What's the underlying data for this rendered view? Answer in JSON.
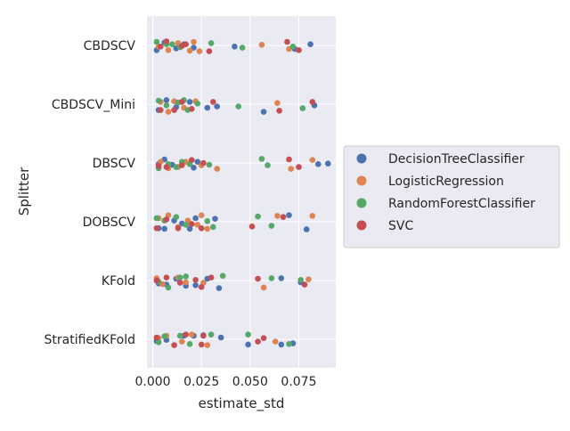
{
  "chart_data": {
    "type": "scatter",
    "subtype": "strip",
    "xlabel": "estimate_std",
    "ylabel": "Splitter",
    "xlim": [
      -0.003,
      0.094
    ],
    "xticks": [
      0.0,
      0.025,
      0.05,
      0.075
    ],
    "xtick_labels": [
      "0.000",
      "0.025",
      "0.050",
      "0.075"
    ],
    "categories": [
      "CBDSCV",
      "CBDSCV_Mini",
      "DBSCV",
      "DOBSCV",
      "KFold",
      "StratifiedKFold"
    ],
    "grid": true,
    "legend_position": "right",
    "series": [
      {
        "name": "DecisionTreeClassifier",
        "color": "#4c72b0",
        "points": [
          {
            "cat": "CBDSCV",
            "x": 0.002,
            "j": 0.08
          },
          {
            "cat": "CBDSCV",
            "x": 0.006,
            "j": -0.05
          },
          {
            "cat": "CBDSCV",
            "x": 0.012,
            "j": 0.05
          },
          {
            "cat": "CBDSCV",
            "x": 0.016,
            "j": -0.02
          },
          {
            "cat": "CBDSCV",
            "x": 0.021,
            "j": 0.04
          },
          {
            "cat": "CBDSCV",
            "x": 0.042,
            "j": 0.02
          },
          {
            "cat": "CBDSCV",
            "x": 0.073,
            "j": 0.06
          },
          {
            "cat": "CBDSCV",
            "x": 0.081,
            "j": -0.02
          },
          {
            "cat": "CBDSCV_Mini",
            "x": 0.003,
            "j": 0.1
          },
          {
            "cat": "CBDSCV_Mini",
            "x": 0.007,
            "j": -0.07
          },
          {
            "cat": "CBDSCV_Mini",
            "x": 0.012,
            "j": 0.05
          },
          {
            "cat": "CBDSCV_Mini",
            "x": 0.019,
            "j": -0.04
          },
          {
            "cat": "CBDSCV_Mini",
            "x": 0.028,
            "j": 0.06
          },
          {
            "cat": "CBDSCV_Mini",
            "x": 0.033,
            "j": 0.04
          },
          {
            "cat": "CBDSCV_Mini",
            "x": 0.057,
            "j": 0.13
          },
          {
            "cat": "CBDSCV_Mini",
            "x": 0.083,
            "j": 0.02
          },
          {
            "cat": "DBSCV",
            "x": 0.003,
            "j": 0.02
          },
          {
            "cat": "DBSCV",
            "x": 0.006,
            "j": -0.06
          },
          {
            "cat": "DBSCV",
            "x": 0.01,
            "j": 0.03
          },
          {
            "cat": "DBSCV",
            "x": 0.015,
            "j": -0.01
          },
          {
            "cat": "DBSCV",
            "x": 0.021,
            "j": 0.08
          },
          {
            "cat": "DBSCV",
            "x": 0.023,
            "j": -0.02
          },
          {
            "cat": "DBSCV",
            "x": 0.085,
            "j": 0.02
          },
          {
            "cat": "DBSCV",
            "x": 0.09,
            "j": 0.01
          },
          {
            "cat": "DOBSCV",
            "x": 0.003,
            "j": 0.11
          },
          {
            "cat": "DOBSCV",
            "x": 0.006,
            "j": 0.12
          },
          {
            "cat": "DOBSCV",
            "x": 0.011,
            "j": -0.02
          },
          {
            "cat": "DOBSCV",
            "x": 0.015,
            "j": 0.03
          },
          {
            "cat": "DOBSCV",
            "x": 0.019,
            "j": 0.12
          },
          {
            "cat": "DOBSCV",
            "x": 0.022,
            "j": -0.06
          },
          {
            "cat": "DOBSCV",
            "x": 0.032,
            "j": -0.05
          },
          {
            "cat": "DOBSCV",
            "x": 0.07,
            "j": -0.11
          },
          {
            "cat": "DOBSCV",
            "x": 0.079,
            "j": 0.13
          },
          {
            "cat": "KFold",
            "x": 0.003,
            "j": 0.05
          },
          {
            "cat": "KFold",
            "x": 0.007,
            "j": 0.07
          },
          {
            "cat": "KFold",
            "x": 0.012,
            "j": -0.03
          },
          {
            "cat": "KFold",
            "x": 0.017,
            "j": 0.09
          },
          {
            "cat": "KFold",
            "x": 0.022,
            "j": 0.08
          },
          {
            "cat": "KFold",
            "x": 0.028,
            "j": -0.03
          },
          {
            "cat": "KFold",
            "x": 0.034,
            "j": 0.13
          },
          {
            "cat": "KFold",
            "x": 0.066,
            "j": -0.04
          },
          {
            "cat": "KFold",
            "x": 0.076,
            "j": 0.03
          },
          {
            "cat": "StratifiedKFold",
            "x": 0.002,
            "j": 0.03
          },
          {
            "cat": "StratifiedKFold",
            "x": 0.007,
            "j": 0.01
          },
          {
            "cat": "StratifiedKFold",
            "x": 0.016,
            "j": -0.06
          },
          {
            "cat": "StratifiedKFold",
            "x": 0.021,
            "j": -0.06
          },
          {
            "cat": "StratifiedKFold",
            "x": 0.026,
            "j": -0.07
          },
          {
            "cat": "StratifiedKFold",
            "x": 0.035,
            "j": -0.03
          },
          {
            "cat": "StratifiedKFold",
            "x": 0.049,
            "j": 0.09
          },
          {
            "cat": "StratifiedKFold",
            "x": 0.066,
            "j": 0.09
          },
          {
            "cat": "StratifiedKFold",
            "x": 0.072,
            "j": 0.07
          }
        ]
      },
      {
        "name": "LogisticRegression",
        "color": "#dd8452",
        "points": [
          {
            "cat": "CBDSCV",
            "x": 0.003,
            "j": 0.02
          },
          {
            "cat": "CBDSCV",
            "x": 0.008,
            "j": 0.08
          },
          {
            "cat": "CBDSCV",
            "x": 0.013,
            "j": -0.04
          },
          {
            "cat": "CBDSCV",
            "x": 0.019,
            "j": 0.09
          },
          {
            "cat": "CBDSCV",
            "x": 0.021,
            "j": -0.06
          },
          {
            "cat": "CBDSCV",
            "x": 0.024,
            "j": 0.1
          },
          {
            "cat": "CBDSCV",
            "x": 0.056,
            "j": -0.01
          },
          {
            "cat": "CBDSCV",
            "x": 0.07,
            "j": 0.06
          },
          {
            "cat": "CBDSCV_Mini",
            "x": 0.004,
            "j": -0.04
          },
          {
            "cat": "CBDSCV_Mini",
            "x": 0.008,
            "j": 0.13
          },
          {
            "cat": "CBDSCV_Mini",
            "x": 0.011,
            "j": -0.05
          },
          {
            "cat": "CBDSCV_Mini",
            "x": 0.016,
            "j": 0.06
          },
          {
            "cat": "CBDSCV_Mini",
            "x": 0.022,
            "j": -0.05
          },
          {
            "cat": "CBDSCV_Mini",
            "x": 0.064,
            "j": -0.02
          },
          {
            "cat": "DBSCV",
            "x": 0.004,
            "j": -0.02
          },
          {
            "cat": "DBSCV",
            "x": 0.008,
            "j": 0.09
          },
          {
            "cat": "DBSCV",
            "x": 0.013,
            "j": 0.07
          },
          {
            "cat": "DBSCV",
            "x": 0.017,
            "j": -0.02
          },
          {
            "cat": "DBSCV",
            "x": 0.025,
            "j": 0.04
          },
          {
            "cat": "DBSCV",
            "x": 0.033,
            "j": 0.1
          },
          {
            "cat": "DBSCV",
            "x": 0.071,
            "j": 0.1
          },
          {
            "cat": "DBSCV",
            "x": 0.082,
            "j": -0.05
          },
          {
            "cat": "DOBSCV",
            "x": 0.003,
            "j": -0.06
          },
          {
            "cat": "DOBSCV",
            "x": 0.008,
            "j": -0.11
          },
          {
            "cat": "DOBSCV",
            "x": 0.013,
            "j": 0.09
          },
          {
            "cat": "DOBSCV",
            "x": 0.018,
            "j": -0.02
          },
          {
            "cat": "DOBSCV",
            "x": 0.023,
            "j": 0.05
          },
          {
            "cat": "DOBSCV",
            "x": 0.025,
            "j": -0.11
          },
          {
            "cat": "DOBSCV",
            "x": 0.028,
            "j": 0.12
          },
          {
            "cat": "DOBSCV",
            "x": 0.064,
            "j": -0.1
          },
          {
            "cat": "DOBSCV",
            "x": 0.082,
            "j": -0.1
          },
          {
            "cat": "KFold",
            "x": 0.002,
            "j": -0.04
          },
          {
            "cat": "KFold",
            "x": 0.005,
            "j": 0.06
          },
          {
            "cat": "KFold",
            "x": 0.013,
            "j": -0.05
          },
          {
            "cat": "KFold",
            "x": 0.017,
            "j": 0.03
          },
          {
            "cat": "KFold",
            "x": 0.026,
            "j": 0.04
          },
          {
            "cat": "KFold",
            "x": 0.057,
            "j": 0.12
          },
          {
            "cat": "KFold",
            "x": 0.08,
            "j": -0.02
          },
          {
            "cat": "StratifiedKFold",
            "x": 0.003,
            "j": -0.02
          },
          {
            "cat": "StratifiedKFold",
            "x": 0.007,
            "j": -0.06
          },
          {
            "cat": "StratifiedKFold",
            "x": 0.015,
            "j": 0.04
          },
          {
            "cat": "StratifiedKFold",
            "x": 0.02,
            "j": -0.08
          },
          {
            "cat": "StratifiedKFold",
            "x": 0.028,
            "j": 0.1
          },
          {
            "cat": "StratifiedKFold",
            "x": 0.063,
            "j": 0.04
          }
        ]
      },
      {
        "name": "RandomForestClassifier",
        "color": "#55a868",
        "points": [
          {
            "cat": "CBDSCV",
            "x": 0.002,
            "j": -0.06
          },
          {
            "cat": "CBDSCV",
            "x": 0.007,
            "j": -0.02
          },
          {
            "cat": "CBDSCV",
            "x": 0.01,
            "j": -0.02
          },
          {
            "cat": "CBDSCV",
            "x": 0.014,
            "j": 0.03
          },
          {
            "cat": "CBDSCV",
            "x": 0.03,
            "j": -0.04
          },
          {
            "cat": "CBDSCV",
            "x": 0.046,
            "j": 0.04
          },
          {
            "cat": "CBDSCV",
            "x": 0.072,
            "j": 0.02
          },
          {
            "cat": "CBDSCV_Mini",
            "x": 0.003,
            "j": -0.06
          },
          {
            "cat": "CBDSCV_Mini",
            "x": 0.007,
            "j": 0.02
          },
          {
            "cat": "CBDSCV_Mini",
            "x": 0.013,
            "j": -0.03
          },
          {
            "cat": "CBDSCV_Mini",
            "x": 0.016,
            "j": -0.07
          },
          {
            "cat": "CBDSCV_Mini",
            "x": 0.018,
            "j": 0.1
          },
          {
            "cat": "CBDSCV_Mini",
            "x": 0.023,
            "j": -0.01
          },
          {
            "cat": "CBDSCV_Mini",
            "x": 0.044,
            "j": 0.04
          },
          {
            "cat": "CBDSCV_Mini",
            "x": 0.077,
            "j": 0.07
          },
          {
            "cat": "DBSCV",
            "x": 0.003,
            "j": 0.09
          },
          {
            "cat": "DBSCV",
            "x": 0.008,
            "j": 0.02
          },
          {
            "cat": "DBSCV",
            "x": 0.012,
            "j": 0.07
          },
          {
            "cat": "DBSCV",
            "x": 0.015,
            "j": -0.02
          },
          {
            "cat": "DBSCV",
            "x": 0.019,
            "j": 0.02
          },
          {
            "cat": "DBSCV",
            "x": 0.029,
            "j": 0.03
          },
          {
            "cat": "DBSCV",
            "x": 0.056,
            "j": -0.07
          },
          {
            "cat": "DBSCV",
            "x": 0.059,
            "j": 0.04
          },
          {
            "cat": "DOBSCV",
            "x": 0.002,
            "j": -0.06
          },
          {
            "cat": "DOBSCV",
            "x": 0.006,
            "j": -0.02
          },
          {
            "cat": "DOBSCV",
            "x": 0.012,
            "j": -0.08
          },
          {
            "cat": "DOBSCV",
            "x": 0.017,
            "j": 0.05
          },
          {
            "cat": "DOBSCV",
            "x": 0.028,
            "j": -0.01
          },
          {
            "cat": "DOBSCV",
            "x": 0.031,
            "j": 0.09
          },
          {
            "cat": "DOBSCV",
            "x": 0.054,
            "j": -0.09
          },
          {
            "cat": "DOBSCV",
            "x": 0.061,
            "j": 0.07
          },
          {
            "cat": "KFold",
            "x": 0.003,
            "j": 0.02
          },
          {
            "cat": "KFold",
            "x": 0.008,
            "j": 0.12
          },
          {
            "cat": "KFold",
            "x": 0.014,
            "j": -0.05
          },
          {
            "cat": "KFold",
            "x": 0.017,
            "j": -0.07
          },
          {
            "cat": "KFold",
            "x": 0.036,
            "j": -0.08
          },
          {
            "cat": "KFold",
            "x": 0.061,
            "j": -0.04
          },
          {
            "cat": "KFold",
            "x": 0.076,
            "j": -0.01
          },
          {
            "cat": "StratifiedKFold",
            "x": 0.003,
            "j": 0.05
          },
          {
            "cat": "StratifiedKFold",
            "x": 0.006,
            "j": -0.05
          },
          {
            "cat": "StratifiedKFold",
            "x": 0.014,
            "j": -0.06
          },
          {
            "cat": "StratifiedKFold",
            "x": 0.019,
            "j": 0.08
          },
          {
            "cat": "StratifiedKFold",
            "x": 0.03,
            "j": -0.08
          },
          {
            "cat": "StratifiedKFold",
            "x": 0.049,
            "j": -0.08
          },
          {
            "cat": "StratifiedKFold",
            "x": 0.07,
            "j": 0.08
          }
        ]
      },
      {
        "name": "SVC",
        "color": "#c44e52",
        "points": [
          {
            "cat": "CBDSCV",
            "x": 0.004,
            "j": 0.02
          },
          {
            "cat": "CBDSCV",
            "x": 0.007,
            "j": -0.07
          },
          {
            "cat": "CBDSCV",
            "x": 0.015,
            "j": 0.01
          },
          {
            "cat": "CBDSCV",
            "x": 0.017,
            "j": -0.02
          },
          {
            "cat": "CBDSCV",
            "x": 0.029,
            "j": 0.1
          },
          {
            "cat": "CBDSCV",
            "x": 0.069,
            "j": -0.06
          },
          {
            "cat": "CBDSCV",
            "x": 0.075,
            "j": 0.08
          },
          {
            "cat": "CBDSCV_Mini",
            "x": 0.004,
            "j": 0.1
          },
          {
            "cat": "CBDSCV_Mini",
            "x": 0.011,
            "j": 0.1
          },
          {
            "cat": "CBDSCV_Mini",
            "x": 0.015,
            "j": -0.04
          },
          {
            "cat": "CBDSCV_Mini",
            "x": 0.02,
            "j": 0.08
          },
          {
            "cat": "CBDSCV_Mini",
            "x": 0.031,
            "j": -0.04
          },
          {
            "cat": "CBDSCV_Mini",
            "x": 0.065,
            "j": 0.11
          },
          {
            "cat": "CBDSCV_Mini",
            "x": 0.082,
            "j": -0.04
          },
          {
            "cat": "DBSCV",
            "x": 0.003,
            "j": 0.05
          },
          {
            "cat": "DBSCV",
            "x": 0.007,
            "j": 0.07
          },
          {
            "cat": "DBSCV",
            "x": 0.015,
            "j": 0.04
          },
          {
            "cat": "DBSCV",
            "x": 0.02,
            "j": -0.05
          },
          {
            "cat": "DBSCV",
            "x": 0.026,
            "j": 0.0
          },
          {
            "cat": "DBSCV",
            "x": 0.07,
            "j": -0.06
          },
          {
            "cat": "DBSCV",
            "x": 0.075,
            "j": 0.07
          },
          {
            "cat": "DOBSCV",
            "x": 0.002,
            "j": 0.11
          },
          {
            "cat": "DOBSCV",
            "x": 0.007,
            "j": -0.04
          },
          {
            "cat": "DOBSCV",
            "x": 0.013,
            "j": 0.11
          },
          {
            "cat": "DOBSCV",
            "x": 0.02,
            "j": 0.04
          },
          {
            "cat": "DOBSCV",
            "x": 0.025,
            "j": 0.11
          },
          {
            "cat": "DOBSCV",
            "x": 0.051,
            "j": 0.08
          },
          {
            "cat": "DOBSCV",
            "x": 0.067,
            "j": -0.08
          },
          {
            "cat": "KFold",
            "x": 0.002,
            "j": 0.0
          },
          {
            "cat": "KFold",
            "x": 0.007,
            "j": -0.05
          },
          {
            "cat": "KFold",
            "x": 0.014,
            "j": 0.04
          },
          {
            "cat": "KFold",
            "x": 0.022,
            "j": -0.01
          },
          {
            "cat": "KFold",
            "x": 0.025,
            "j": 0.11
          },
          {
            "cat": "KFold",
            "x": 0.03,
            "j": -0.05
          },
          {
            "cat": "KFold",
            "x": 0.054,
            "j": -0.03
          },
          {
            "cat": "KFold",
            "x": 0.078,
            "j": 0.07
          },
          {
            "cat": "StratifiedKFold",
            "x": 0.002,
            "j": -0.03
          },
          {
            "cat": "StratifiedKFold",
            "x": 0.011,
            "j": 0.1
          },
          {
            "cat": "StratifiedKFold",
            "x": 0.017,
            "j": -0.08
          },
          {
            "cat": "StratifiedKFold",
            "x": 0.025,
            "j": 0.09
          },
          {
            "cat": "StratifiedKFold",
            "x": 0.026,
            "j": -0.06
          },
          {
            "cat": "StratifiedKFold",
            "x": 0.054,
            "j": 0.04
          },
          {
            "cat": "StratifiedKFold",
            "x": 0.057,
            "j": -0.02
          }
        ]
      }
    ]
  }
}
